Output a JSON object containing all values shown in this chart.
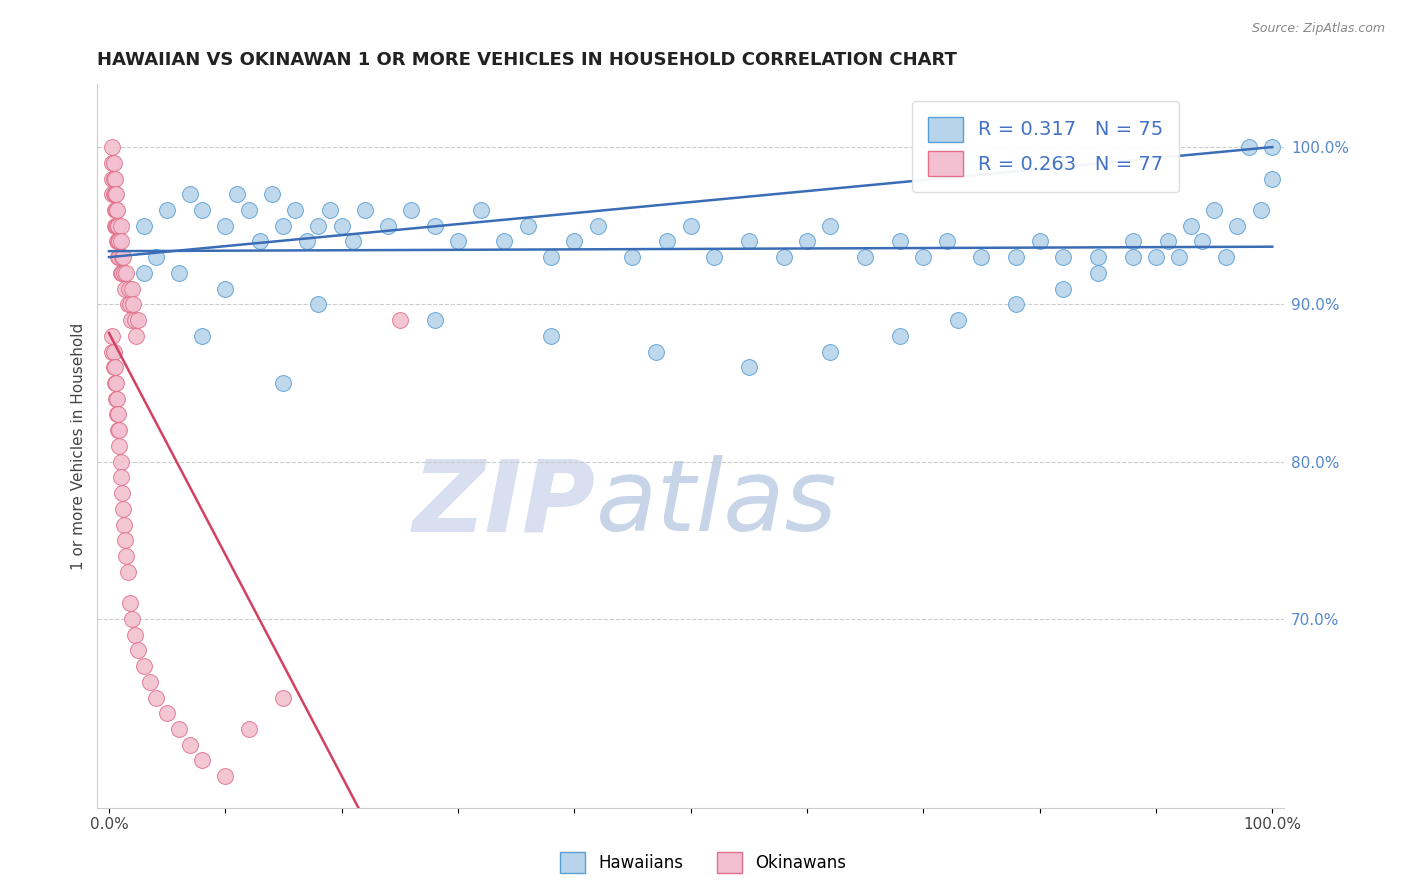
{
  "title": "HAWAIIAN VS OKINAWAN 1 OR MORE VEHICLES IN HOUSEHOLD CORRELATION CHART",
  "source": "Source: ZipAtlas.com",
  "ylabel": "1 or more Vehicles in Household",
  "xlabel": "",
  "xlim": [
    -1,
    101
  ],
  "ylim": [
    58,
    104
  ],
  "x_ticks": [
    0,
    10,
    20,
    30,
    40,
    50,
    60,
    70,
    80,
    90,
    100
  ],
  "x_tick_labels": [
    "0.0%",
    "",
    "",
    "",
    "",
    "",
    "",
    "",
    "",
    "",
    "100.0%"
  ],
  "y_ticks_right": [
    70,
    80,
    90,
    100
  ],
  "y_tick_labels_right": [
    "70.0%",
    "80.0%",
    "90.0%",
    "100.0%"
  ],
  "hawaiian_R": 0.317,
  "hawaiian_N": 75,
  "okinawan_R": 0.263,
  "okinawan_N": 77,
  "hawaiian_color": "#b8d4ea",
  "hawaiian_edge": "#5a9fd4",
  "okinawan_color": "#f2c0d0",
  "okinawan_edge": "#e0708a",
  "trend_color_hawaiian": "#3a6db5",
  "trend_color_okinawan": "#d44060",
  "watermark_zip_color": "#d8dff0",
  "watermark_atlas_color": "#c8d4e8",
  "hawaiian_x": [
    3,
    5,
    7,
    8,
    10,
    11,
    12,
    13,
    14,
    15,
    16,
    17,
    18,
    19,
    20,
    21,
    22,
    24,
    26,
    28,
    30,
    32,
    34,
    36,
    38,
    40,
    42,
    45,
    48,
    50,
    52,
    55,
    58,
    60,
    62,
    65,
    68,
    70,
    72,
    75,
    78,
    80,
    82,
    85,
    88,
    90,
    92,
    94,
    96,
    98,
    100,
    100,
    99,
    97,
    95,
    93,
    91,
    88,
    85,
    82,
    78,
    73,
    68,
    62,
    55,
    47,
    38,
    28,
    18,
    10,
    6,
    4,
    3,
    8,
    15
  ],
  "hawaiian_y": [
    95,
    96,
    97,
    96,
    95,
    97,
    96,
    94,
    97,
    95,
    96,
    94,
    95,
    96,
    95,
    94,
    96,
    95,
    96,
    95,
    94,
    96,
    94,
    95,
    93,
    94,
    95,
    93,
    94,
    95,
    93,
    94,
    93,
    94,
    95,
    93,
    94,
    93,
    94,
    93,
    93,
    94,
    93,
    93,
    94,
    93,
    93,
    94,
    93,
    100,
    100,
    98,
    96,
    95,
    96,
    95,
    94,
    93,
    92,
    91,
    90,
    89,
    88,
    87,
    86,
    87,
    88,
    89,
    90,
    91,
    92,
    93,
    92,
    88,
    85
  ],
  "okinawan_x": [
    0.3,
    0.3,
    0.3,
    0.3,
    0.4,
    0.4,
    0.4,
    0.5,
    0.5,
    0.5,
    0.5,
    0.6,
    0.6,
    0.6,
    0.7,
    0.7,
    0.7,
    0.8,
    0.8,
    0.8,
    0.9,
    0.9,
    1.0,
    1.0,
    1.0,
    1.1,
    1.1,
    1.2,
    1.3,
    1.4,
    1.5,
    1.6,
    1.7,
    1.8,
    1.9,
    2.0,
    2.1,
    2.2,
    2.3,
    2.5,
    0.3,
    0.3,
    0.4,
    0.4,
    0.5,
    0.5,
    0.6,
    0.6,
    0.7,
    0.7,
    0.8,
    0.8,
    0.9,
    0.9,
    1.0,
    1.0,
    1.1,
    1.2,
    1.3,
    1.4,
    1.5,
    1.6,
    1.8,
    2.0,
    2.2,
    2.5,
    3.0,
    3.5,
    4.0,
    5.0,
    6.0,
    7.0,
    8.0,
    10.0,
    12.0,
    15.0,
    25.0
  ],
  "okinawan_y": [
    100,
    99,
    98,
    97,
    99,
    98,
    97,
    98,
    97,
    96,
    95,
    97,
    96,
    95,
    96,
    95,
    94,
    95,
    94,
    93,
    94,
    93,
    95,
    94,
    92,
    93,
    92,
    93,
    92,
    91,
    92,
    90,
    91,
    90,
    89,
    91,
    90,
    89,
    88,
    89,
    88,
    87,
    87,
    86,
    86,
    85,
    85,
    84,
    84,
    83,
    83,
    82,
    82,
    81,
    80,
    79,
    78,
    77,
    76,
    75,
    74,
    73,
    71,
    70,
    69,
    68,
    67,
    66,
    65,
    64,
    63,
    62,
    61,
    60,
    63,
    65,
    89
  ]
}
